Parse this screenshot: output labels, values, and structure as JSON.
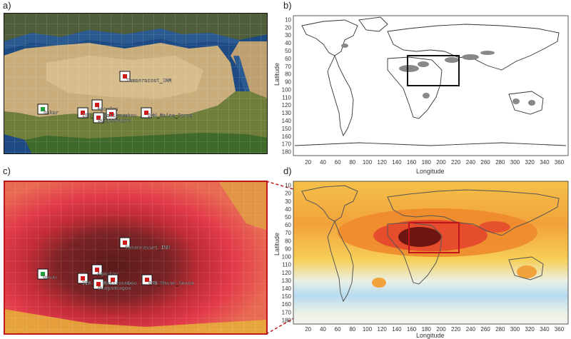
{
  "panels": {
    "a": "a)",
    "b": "b)",
    "c": "c)",
    "d": "d)"
  },
  "stations": [
    {
      "name": "Tamanrasset_INM",
      "icon": "station-marker"
    },
    {
      "name": "Dakar",
      "icon": "station-marker"
    },
    {
      "name": "Agoufou",
      "icon": "station-marker"
    },
    {
      "name": "IER_Cinzana",
      "icon": "station-marker"
    },
    {
      "name": "Banizoumbou",
      "icon": "station-marker"
    },
    {
      "name": "Ouagadougou",
      "icon": "station-marker"
    },
    {
      "name": "DMN_Maine_Soroa",
      "icon": "station-marker"
    }
  ],
  "axes": {
    "latitude_label": "Latitude",
    "longitude_label": "Longitude",
    "lat_ticks": [
      "10",
      "20",
      "30",
      "40",
      "50",
      "60",
      "70",
      "80",
      "90",
      "100",
      "110",
      "120",
      "130",
      "140",
      "150",
      "160",
      "170",
      "180"
    ],
    "lon_ticks": [
      "20",
      "40",
      "60",
      "80",
      "100",
      "120",
      "140",
      "160",
      "180",
      "200",
      "220",
      "240",
      "260",
      "280",
      "300",
      "320",
      "340",
      "360"
    ]
  },
  "colors": {
    "frame": "#111111",
    "highlight_box": "#c0161b",
    "marker_red": "#d01919",
    "marker_green": "#1f9e3a"
  }
}
